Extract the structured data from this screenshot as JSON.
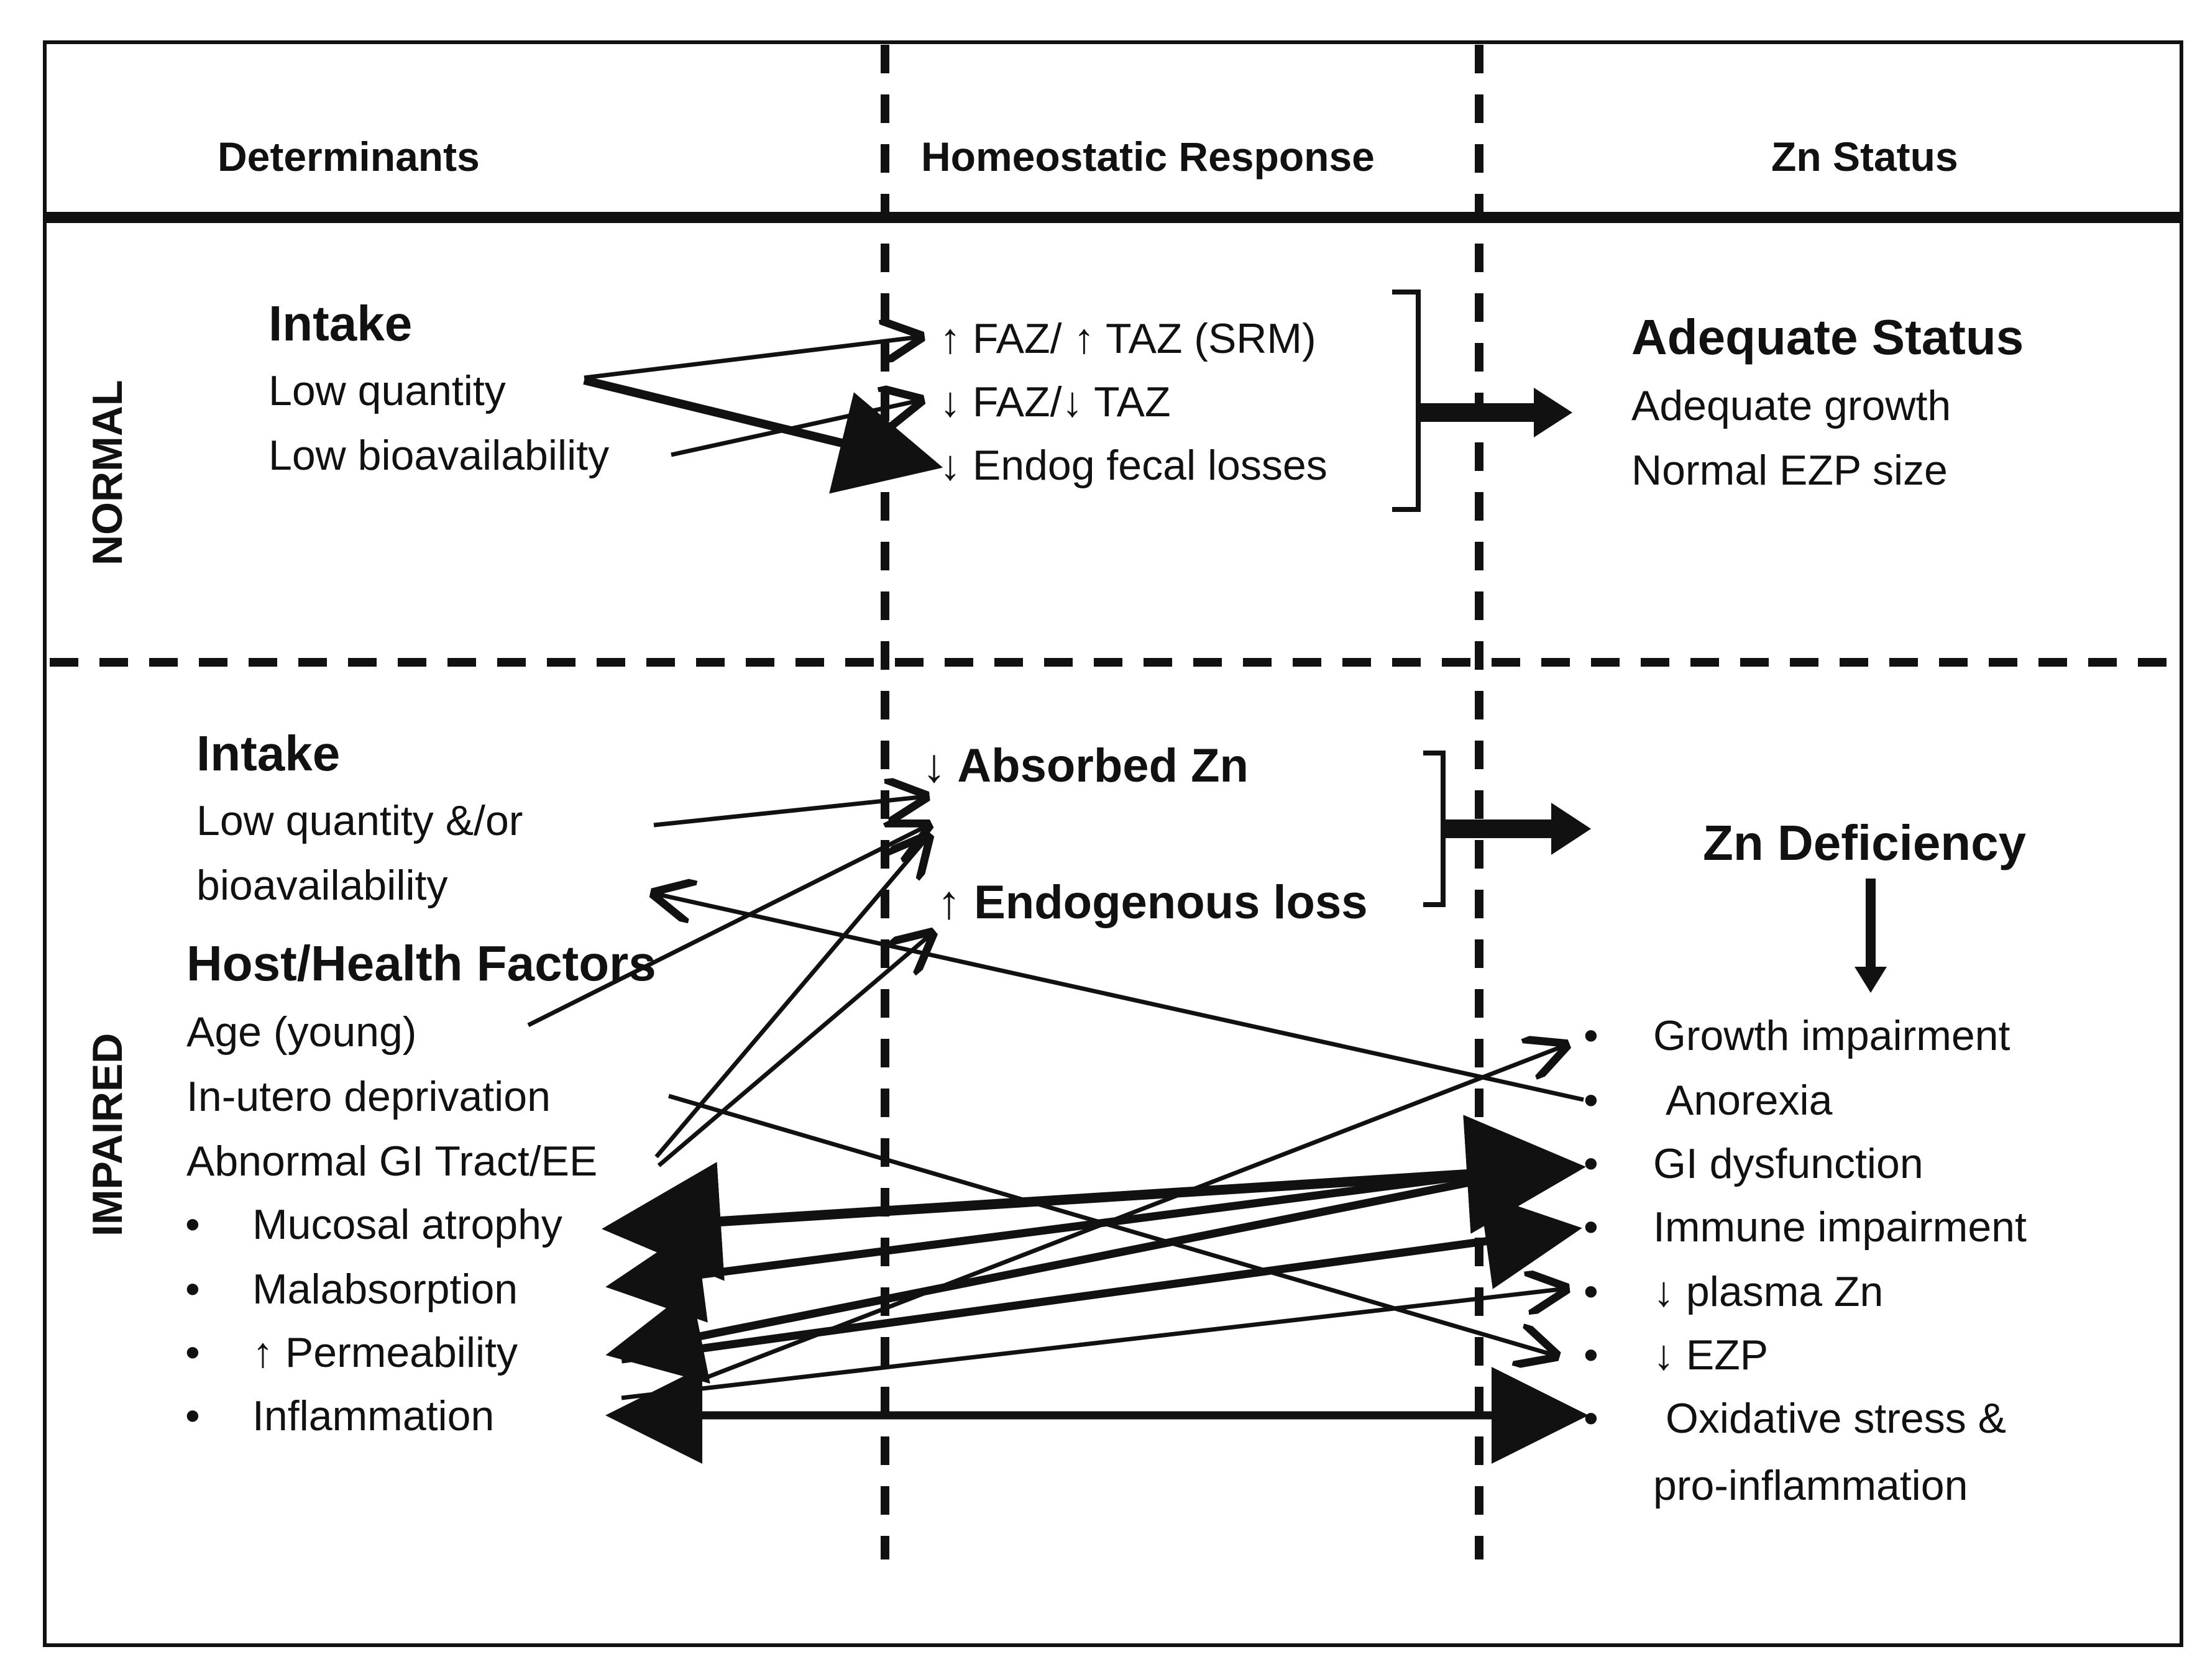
{
  "headers": {
    "col1": "Determinants",
    "col2": "Homeostatic Response",
    "col3": "Zn Status"
  },
  "rows": {
    "normal": "NORMAL",
    "impaired": "IMPAIRED"
  },
  "normal": {
    "intake_title": "Intake",
    "intake_items": [
      "Low quantity",
      "Low bioavailability"
    ],
    "responses": [
      "↑ FAZ/ ↑ TAZ (SRM)",
      "↓ FAZ/↓ TAZ",
      "↓ Endog fecal losses"
    ],
    "status_title": "Adequate Status",
    "status_items": [
      "Adequate growth",
      "Normal EZP size"
    ]
  },
  "impaired": {
    "intake_title": "Intake",
    "intake_items": [
      "Low quantity &/or",
      "bioavailability"
    ],
    "host_title": "Host/Health Factors",
    "host_items": [
      "Age (young)",
      "In-utero deprivation",
      "Abnormal GI Tract/EE"
    ],
    "bullet": "•",
    "gi_subitems": [
      "Mucosal atrophy",
      "Malabsorption",
      "↑ Permeability",
      "Inflammation"
    ],
    "responses": [
      "↓ Absorbed Zn",
      "↑ Endogenous loss"
    ],
    "status_title": "Zn Deficiency",
    "outcomes": [
      "Growth impairment",
      "Anorexia",
      "GI dysfunction",
      "Immune impairment",
      "↓ plasma Zn",
      "↓ EZP",
      "Oxidative stress &",
      "pro-inflammation"
    ]
  },
  "colors": {
    "ink": "#111111",
    "background": "#ffffff"
  }
}
